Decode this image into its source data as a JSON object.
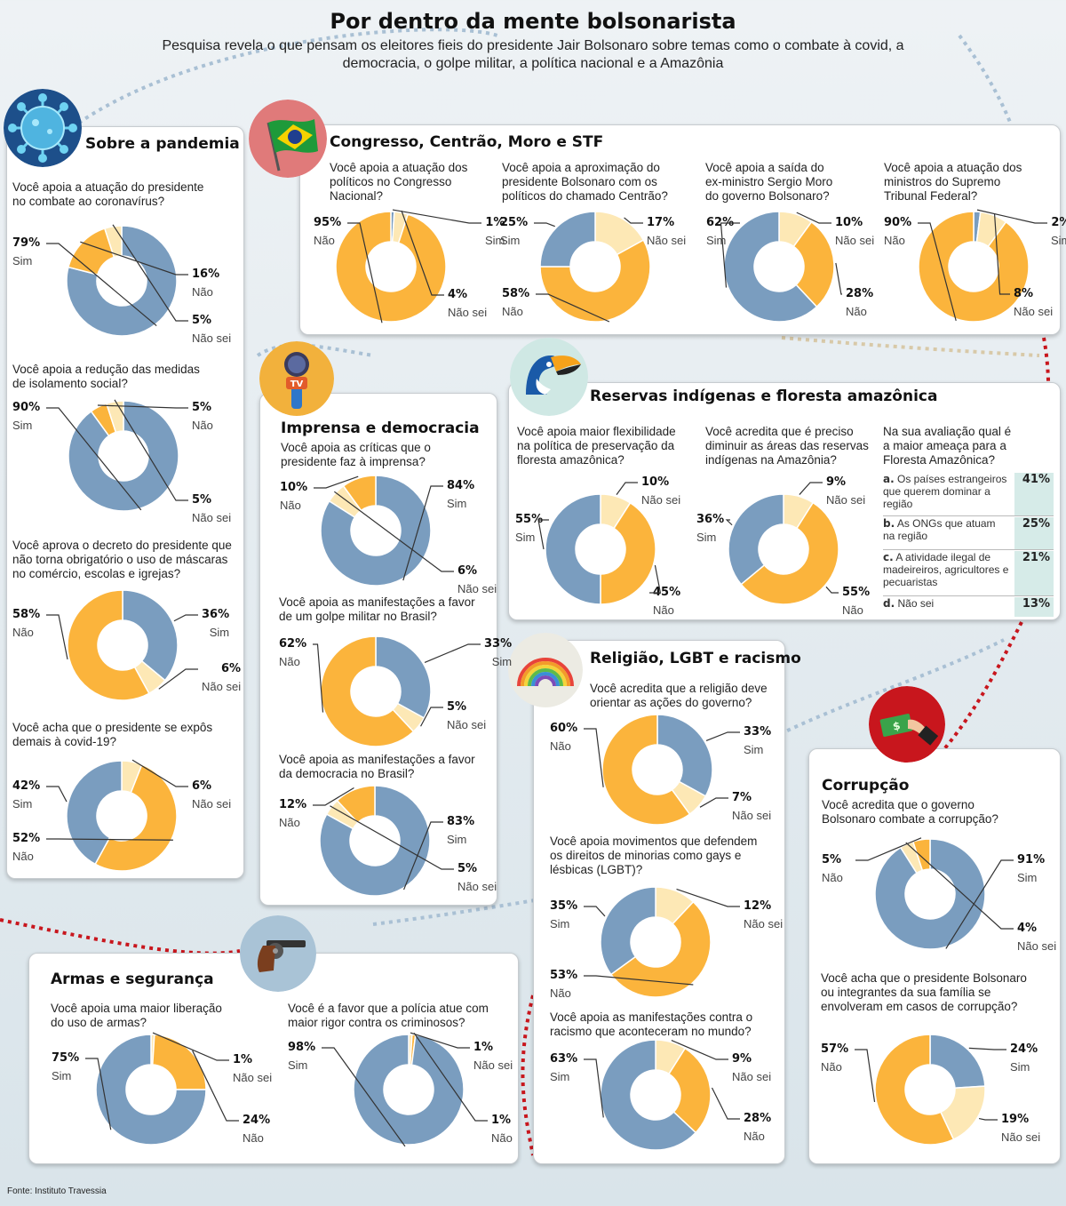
{
  "header": {
    "title": "Por dentro da mente bolsonarista",
    "subtitle": "Pesquisa revela o que pensam os eleitores fieis do presidente Jair Bolsonaro sobre temas como o combate à covid, a democracia, o golpe militar, a política nacional e a Amazônia"
  },
  "colors": {
    "blue": "#7a9dbf",
    "orange": "#fbb43c",
    "cream": "#fde8b5",
    "grey_line": "#333333",
    "panel": "#ffffff",
    "accent_red": "#c8161d",
    "accent_teal": "#cfe8e4"
  },
  "icons": [
    "virus-icon",
    "brazil-flag-icon",
    "tv-microphone-icon",
    "toucan-icon",
    "rainbow-icon",
    "revolver-icon",
    "money-hand-icon"
  ],
  "sections": {
    "pandemia": {
      "title": "Sobre a pandemia"
    },
    "congresso": {
      "title": "Congresso, Centrão, Moro e STF"
    },
    "imprensa": {
      "title": "Imprensa e democracia"
    },
    "reservas": {
      "title": "Reservas indígenas e floresta amazônica"
    },
    "religiao": {
      "title": "Religião, LGBT e racismo"
    },
    "corrupcao": {
      "title": "Corrupção"
    },
    "armas": {
      "title": "Armas e segurança"
    }
  },
  "threat": {
    "question": [
      "Na sua avaliação qual é",
      "a maior ameaça para a",
      "Floresta Amazônica?"
    ],
    "items": [
      {
        "letter": "a.",
        "text": "Os países estrangeiros que querem dominar a região",
        "value": "41%"
      },
      {
        "letter": "b.",
        "text": "As ONGs que atuam na região",
        "value": "25%"
      },
      {
        "letter": "c.",
        "text": "A atividade ilegal de madeireiros, agricultores e pecuaristas",
        "value": "21%"
      },
      {
        "letter": "d.",
        "text": "Não sei",
        "value": "13%"
      }
    ]
  },
  "source": "Fonte: Instituto Travessia",
  "chart_data": [
    {
      "type": "pie",
      "section": "Sobre a pandemia",
      "question": [
        "Você apoia a atuação do presidente",
        "no combate ao coronavírus?"
      ],
      "slices": [
        {
          "label": "Sim",
          "value": 79,
          "pct": "79%",
          "color": "#7a9dbf"
        },
        {
          "label": "Não",
          "value": 16,
          "pct": "16%",
          "color": "#fbb43c"
        },
        {
          "label": "Não sei",
          "value": 5,
          "pct": "5%",
          "color": "#fde8b5"
        }
      ]
    },
    {
      "type": "pie",
      "section": "Sobre a pandemia",
      "question": [
        "Você apoia a redução das medidas",
        "de isolamento social?"
      ],
      "slices": [
        {
          "label": "Sim",
          "value": 90,
          "pct": "90%",
          "color": "#7a9dbf"
        },
        {
          "label": "Não",
          "value": 5,
          "pct": "5%",
          "color": "#fbb43c"
        },
        {
          "label": "Não sei",
          "value": 5,
          "pct": "5%",
          "color": "#fde8b5"
        }
      ]
    },
    {
      "type": "pie",
      "section": "Sobre a pandemia",
      "question": [
        "Você aprova o decreto do presidente que",
        "não torna obrigatório o uso de máscaras",
        "no comércio, escolas e igrejas?"
      ],
      "slices": [
        {
          "label": "Sim",
          "value": 36,
          "pct": "36%",
          "color": "#7a9dbf"
        },
        {
          "label": "Não sei",
          "value": 6,
          "pct": "6%",
          "color": "#fde8b5"
        },
        {
          "label": "Não",
          "value": 58,
          "pct": "58%",
          "color": "#fbb43c"
        }
      ]
    },
    {
      "type": "pie",
      "section": "Sobre a pandemia",
      "question": [
        "Você acha que o presidente se expôs",
        "demais à covid-19?"
      ],
      "slices": [
        {
          "label": "Não sei",
          "value": 6,
          "pct": "6%",
          "color": "#fde8b5"
        },
        {
          "label": "Não",
          "value": 52,
          "pct": "52%",
          "color": "#fbb43c"
        },
        {
          "label": "Sim",
          "value": 42,
          "pct": "42%",
          "color": "#7a9dbf"
        }
      ]
    },
    {
      "type": "pie",
      "section": "Congresso, Centrão, Moro e STF",
      "question": [
        "Você apoia a atuação dos",
        "políticos no Congresso",
        "Nacional?"
      ],
      "slices": [
        {
          "label": "Sim",
          "value": 1,
          "pct": "1%",
          "color": "#7a9dbf"
        },
        {
          "label": "Não sei",
          "value": 4,
          "pct": "4%",
          "color": "#fde8b5"
        },
        {
          "label": "Não",
          "value": 95,
          "pct": "95%",
          "color": "#fbb43c"
        }
      ]
    },
    {
      "type": "pie",
      "section": "Congresso, Centrão, Moro e STF",
      "question": [
        "Você apoia a aproximação do",
        "presidente Bolsonaro com os",
        "políticos do chamado Centrão?"
      ],
      "slices": [
        {
          "label": "Não sei",
          "value": 17,
          "pct": "17%",
          "color": "#fde8b5"
        },
        {
          "label": "Não",
          "value": 58,
          "pct": "58%",
          "color": "#fbb43c"
        },
        {
          "label": "Sim",
          "value": 25,
          "pct": "25%",
          "color": "#7a9dbf"
        }
      ]
    },
    {
      "type": "pie",
      "section": "Congresso, Centrão, Moro e STF",
      "question": [
        "Você apoia a saída do",
        "ex-ministro Sergio Moro",
        "do governo Bolsonaro?"
      ],
      "slices": [
        {
          "label": "Não sei",
          "value": 10,
          "pct": "10%",
          "color": "#fde8b5"
        },
        {
          "label": "Não",
          "value": 28,
          "pct": "28%",
          "color": "#fbb43c"
        },
        {
          "label": "Sim",
          "value": 62,
          "pct": "62%",
          "color": "#7a9dbf"
        }
      ]
    },
    {
      "type": "pie",
      "section": "Congresso, Centrão, Moro e STF",
      "question": [
        "Você apoia a atuação dos",
        "ministros do Supremo",
        "Tribunal Federal?"
      ],
      "slices": [
        {
          "label": "Sim",
          "value": 2,
          "pct": "2%",
          "color": "#7a9dbf"
        },
        {
          "label": "Não sei",
          "value": 8,
          "pct": "8%",
          "color": "#fde8b5"
        },
        {
          "label": "Não",
          "value": 90,
          "pct": "90%",
          "color": "#fbb43c"
        }
      ]
    },
    {
      "type": "pie",
      "section": "Imprensa e democracia",
      "question": [
        "Você apoia as críticas que o",
        "presidente faz à imprensa?"
      ],
      "slices": [
        {
          "label": "Sim",
          "value": 84,
          "pct": "84%",
          "color": "#7a9dbf"
        },
        {
          "label": "Não sei",
          "value": 6,
          "pct": "6%",
          "color": "#fde8b5"
        },
        {
          "label": "Não",
          "value": 10,
          "pct": "10%",
          "color": "#fbb43c"
        }
      ]
    },
    {
      "type": "pie",
      "section": "Imprensa e democracia",
      "question": [
        "Você apoia as manifestações a favor",
        "de um golpe militar no Brasil?"
      ],
      "slices": [
        {
          "label": "Sim",
          "value": 33,
          "pct": "33%",
          "color": "#7a9dbf"
        },
        {
          "label": "Não sei",
          "value": 5,
          "pct": "5%",
          "color": "#fde8b5"
        },
        {
          "label": "Não",
          "value": 62,
          "pct": "62%",
          "color": "#fbb43c"
        }
      ]
    },
    {
      "type": "pie",
      "section": "Imprensa e democracia",
      "question": [
        "Você apoia as manifestações a favor",
        "da democracia no Brasil?"
      ],
      "slices": [
        {
          "label": "Sim",
          "value": 83,
          "pct": "83%",
          "color": "#7a9dbf"
        },
        {
          "label": "Não sei",
          "value": 5,
          "pct": "5%",
          "color": "#fde8b5"
        },
        {
          "label": "Não",
          "value": 12,
          "pct": "12%",
          "color": "#fbb43c"
        }
      ]
    },
    {
      "type": "pie",
      "section": "Reservas indígenas e floresta amazônica",
      "question": [
        "Você apoia maior flexibilidade",
        "na política de preservação da",
        "floresta amazônica?"
      ],
      "slices": [
        {
          "label": "Não sei",
          "value": 10,
          "pct": "10%",
          "color": "#fde8b5"
        },
        {
          "label": "Não",
          "value": 45,
          "pct": "45%",
          "color": "#fbb43c"
        },
        {
          "label": "Sim",
          "value": 55,
          "pct": "55%",
          "color": "#7a9dbf"
        }
      ]
    },
    {
      "type": "pie",
      "section": "Reservas indígenas e floresta amazônica",
      "question": [
        "Você acredita que é preciso",
        "diminuir as áreas das reservas",
        "indígenas na Amazônia?"
      ],
      "slices": [
        {
          "label": "Não sei",
          "value": 9,
          "pct": "9%",
          "color": "#fde8b5"
        },
        {
          "label": "Não",
          "value": 55,
          "pct": "55%",
          "color": "#fbb43c"
        },
        {
          "label": "Sim",
          "value": 36,
          "pct": "36%",
          "color": "#7a9dbf"
        }
      ]
    },
    {
      "type": "pie",
      "section": "Religião, LGBT e racismo",
      "question": [
        "Você acredita que a religião deve",
        "orientar as ações do governo?"
      ],
      "slices": [
        {
          "label": "Sim",
          "value": 33,
          "pct": "33%",
          "color": "#7a9dbf"
        },
        {
          "label": "Não sei",
          "value": 7,
          "pct": "7%",
          "color": "#fde8b5"
        },
        {
          "label": "Não",
          "value": 60,
          "pct": "60%",
          "color": "#fbb43c"
        }
      ]
    },
    {
      "type": "pie",
      "section": "Religião, LGBT e racismo",
      "question": [
        "Você apoia movimentos que defendem",
        "os direitos de minorias como gays e",
        "lésbicas (LGBT)?"
      ],
      "slices": [
        {
          "label": "Não sei",
          "value": 12,
          "pct": "12%",
          "color": "#fde8b5"
        },
        {
          "label": "Não",
          "value": 53,
          "pct": "53%",
          "color": "#fbb43c"
        },
        {
          "label": "Sim",
          "value": 35,
          "pct": "35%",
          "color": "#7a9dbf"
        }
      ]
    },
    {
      "type": "pie",
      "section": "Religião, LGBT e racismo",
      "question": [
        "Você apoia as manifestações contra o",
        "racismo que aconteceram no mundo?"
      ],
      "slices": [
        {
          "label": "Não sei",
          "value": 9,
          "pct": "9%",
          "color": "#fde8b5"
        },
        {
          "label": "Não",
          "value": 28,
          "pct": "28%",
          "color": "#fbb43c"
        },
        {
          "label": "Sim",
          "value": 63,
          "pct": "63%",
          "color": "#7a9dbf"
        }
      ]
    },
    {
      "type": "pie",
      "section": "Corrupção",
      "question": [
        "Você acredita que o governo",
        "Bolsonaro combate a corrupção?"
      ],
      "slices": [
        {
          "label": "Sim",
          "value": 91,
          "pct": "91%",
          "color": "#7a9dbf"
        },
        {
          "label": "Não sei",
          "value": 4,
          "pct": "4%",
          "color": "#fde8b5"
        },
        {
          "label": "Não",
          "value": 5,
          "pct": "5%",
          "color": "#fbb43c"
        }
      ]
    },
    {
      "type": "pie",
      "section": "Corrupção",
      "question": [
        "Você acha que o presidente Bolsonaro",
        "ou integrantes da sua família se",
        "envolveram em casos de corrupção?"
      ],
      "slices": [
        {
          "label": "Sim",
          "value": 24,
          "pct": "24%",
          "color": "#7a9dbf"
        },
        {
          "label": "Não sei",
          "value": 19,
          "pct": "19%",
          "color": "#fde8b5"
        },
        {
          "label": "Não",
          "value": 57,
          "pct": "57%",
          "color": "#fbb43c"
        }
      ]
    },
    {
      "type": "pie",
      "section": "Armas e segurança",
      "question": [
        "Você apoia uma maior liberação",
        "do uso de armas?"
      ],
      "slices": [
        {
          "label": "Não sei",
          "value": 1,
          "pct": "1%",
          "color": "#fde8b5"
        },
        {
          "label": "Não",
          "value": 24,
          "pct": "24%",
          "color": "#fbb43c"
        },
        {
          "label": "Sim",
          "value": 75,
          "pct": "75%",
          "color": "#7a9dbf"
        }
      ]
    },
    {
      "type": "pie",
      "section": "Armas e segurança",
      "question": [
        "Você é a favor que a polícia atue com",
        "maior rigor contra os criminosos?"
      ],
      "slices": [
        {
          "label": "Não sei",
          "value": 1,
          "pct": "1%",
          "color": "#fde8b5"
        },
        {
          "label": "Não",
          "value": 1,
          "pct": "1%",
          "color": "#fbb43c"
        },
        {
          "label": "Sim",
          "value": 98,
          "pct": "98%",
          "color": "#7a9dbf"
        }
      ]
    }
  ]
}
